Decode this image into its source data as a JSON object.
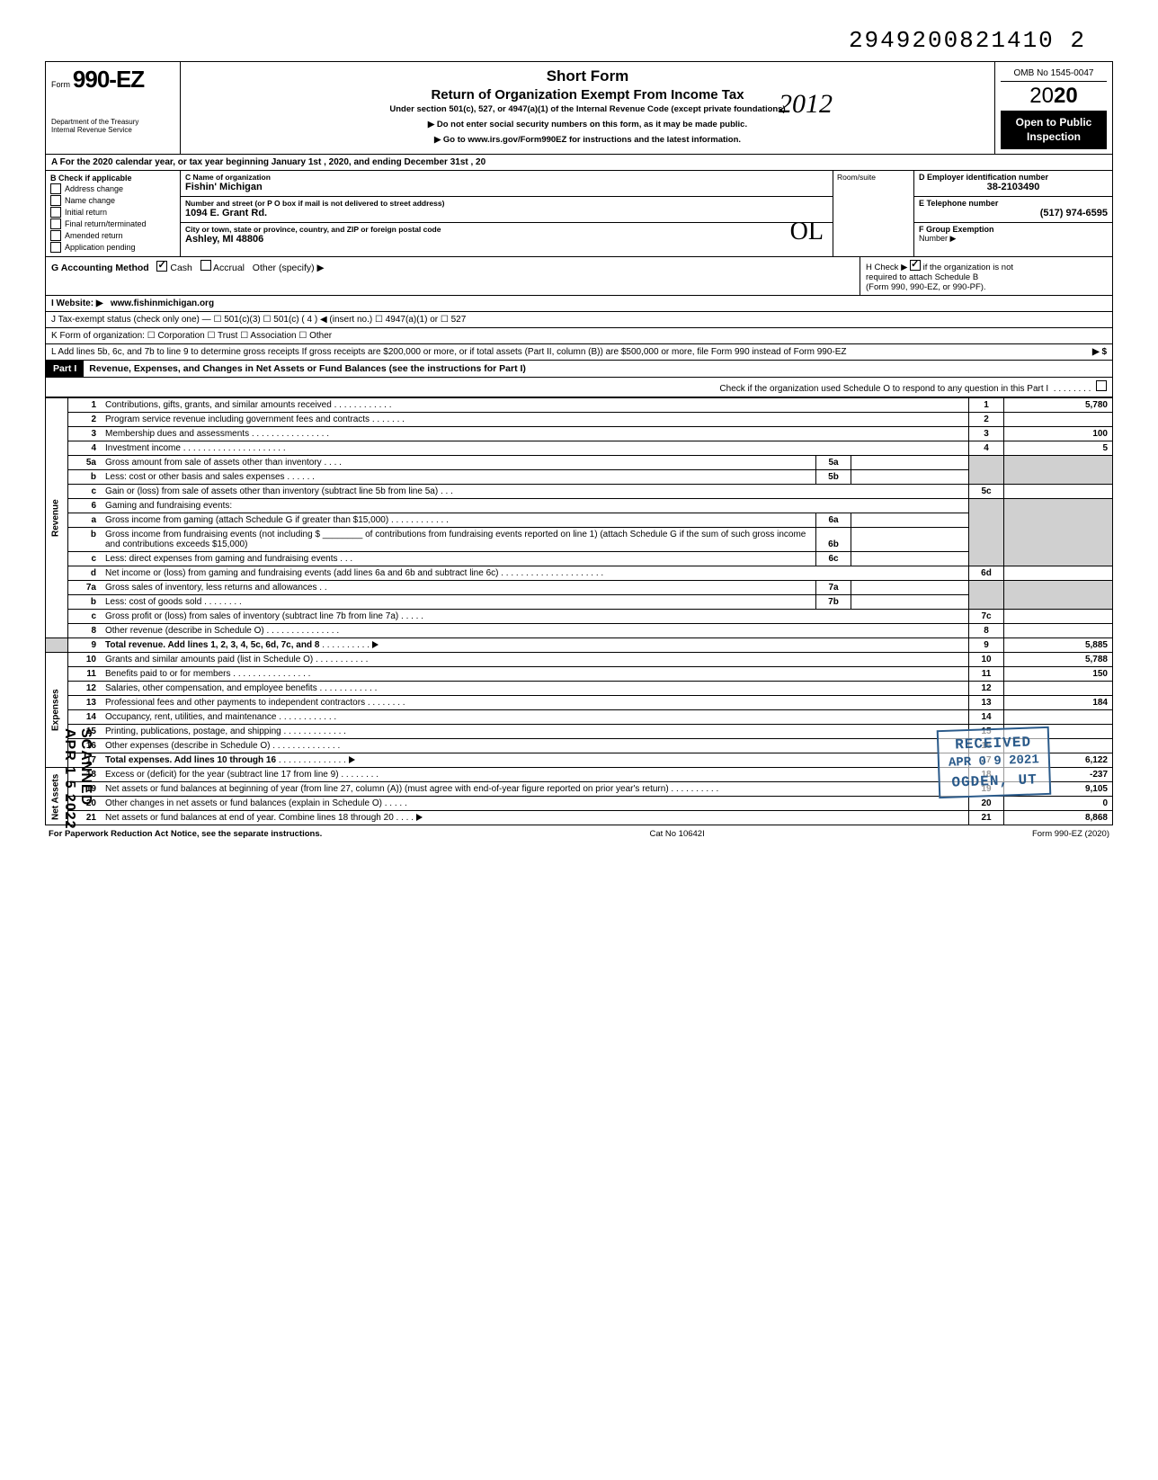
{
  "top_number": "2949200821410  2",
  "form": {
    "word": "Form",
    "number": "990-EZ",
    "dept1": "Department of the Treasury",
    "dept2": "Internal Revenue Service"
  },
  "header": {
    "short_form": "Short Form",
    "title": "Return of Organization Exempt From Income Tax",
    "subtitle": "Under section 501(c), 527, or 4947(a)(1) of the Internal Revenue Code (except private foundations)",
    "line1": "▶ Do not enter social security numbers on this form, as it may be made public.",
    "line2": "▶ Go to www.irs.gov/Form990EZ for instructions and the latest information.",
    "hand_year": "2012",
    "omb": "OMB No 1545-0047",
    "year_prefix": "20",
    "year_bold": "20",
    "open1": "Open to Public",
    "open2": "Inspection"
  },
  "row_a": "A  For the 2020 calendar year, or tax year beginning             January 1st            , 2020, and ending            December 31st          , 20",
  "section_b": {
    "label": "B  Check if applicable",
    "items": [
      "Address change",
      "Name change",
      "Initial return",
      "Final return/terminated",
      "Amended return",
      "Application pending"
    ]
  },
  "section_c": {
    "name_label": "C  Name of organization",
    "name": "Fishin' Michigan",
    "addr_label": "Number and street (or P O  box if mail is not delivered to street address)",
    "addr": "1094 E. Grant Rd.",
    "city_label": "City or town, state or province, country, and ZIP or foreign postal code",
    "city": "Ashley, MI 48806",
    "room_label": "Room/suite",
    "hand_mark": "OL"
  },
  "section_d": {
    "d_label": "D Employer identification number",
    "d_val": "38-2103490",
    "e_label": "E Telephone number",
    "e_val": "(517) 974-6595",
    "f_label": "F Group Exemption",
    "f_label2": "Number ▶"
  },
  "row_g": {
    "label": "G  Accounting Method",
    "cash": "Cash",
    "accrual": "Accrual",
    "other": "Other (specify) ▶"
  },
  "row_h": {
    "text1": "H  Check ▶",
    "text2": "if the organization is not",
    "text3": "required to attach Schedule B",
    "text4": "(Form 990, 990-EZ, or 990-PF)."
  },
  "row_i": {
    "label": "I   Website: ▶",
    "val": "www.fishinmichigan.org"
  },
  "row_j": "J  Tax-exempt status (check only one) —  ☐ 501(c)(3)   ☐ 501(c) (  4  ) ◀ (insert no.)  ☐ 4947(a)(1) or   ☐ 527",
  "row_k": "K  Form of organization:   ☐ Corporation     ☐ Trust              ☐ Association      ☐ Other",
  "row_l": "L  Add lines 5b, 6c, and 7b to line 9 to determine gross receipts  If gross receipts are $200,000 or more, or if total assets (Part II, column (B)) are $500,000 or more, file Form 990 instead of Form 990-EZ",
  "row_l_arrow": "▶   $",
  "part1": {
    "label": "Part I",
    "title": "Revenue, Expenses, and Changes in Net Assets or Fund Balances (see the instructions for Part I)",
    "check": "Check if the organization used Schedule O to respond to any question in this Part I"
  },
  "sides": {
    "revenue": "Revenue",
    "expenses": "Expenses",
    "netassets": "Net Assets"
  },
  "lines": {
    "l1": {
      "num": "1",
      "desc": "Contributions, gifts, grants, and similar amounts received",
      "amt": "5,780"
    },
    "l2": {
      "num": "2",
      "desc": "Program service revenue including government fees and contracts",
      "amt": ""
    },
    "l3": {
      "num": "3",
      "desc": "Membership dues and assessments",
      "amt": "100"
    },
    "l4": {
      "num": "4",
      "desc": "Investment income",
      "amt": "5"
    },
    "l5a": {
      "num": "5a",
      "desc": "Gross amount from sale of assets other than inventory",
      "inum": "5a"
    },
    "l5b": {
      "num": "b",
      "desc": "Less: cost or other basis and sales expenses",
      "inum": "5b"
    },
    "l5c": {
      "num": "c",
      "desc": "Gain or (loss) from sale of assets other than inventory (subtract line 5b from line 5a)",
      "rnum": "5c"
    },
    "l6": {
      "num": "6",
      "desc": "Gaming and fundraising events:"
    },
    "l6a": {
      "num": "a",
      "desc": "Gross income from gaming (attach Schedule G if greater than $15,000)",
      "inum": "6a"
    },
    "l6b": {
      "num": "b",
      "desc1": "Gross income from fundraising events (not including  $",
      "desc2": "of contributions from fundraising events reported on line 1) (attach Schedule G if the sum of such gross income and contributions exceeds $15,000)",
      "inum": "6b"
    },
    "l6c": {
      "num": "c",
      "desc": "Less: direct expenses from gaming and fundraising events",
      "inum": "6c"
    },
    "l6d": {
      "num": "d",
      "desc": "Net income or (loss) from gaming and fundraising events (add lines 6a and 6b and subtract line 6c)",
      "rnum": "6d"
    },
    "l7a": {
      "num": "7a",
      "desc": "Gross sales of inventory, less returns and allowances",
      "inum": "7a"
    },
    "l7b": {
      "num": "b",
      "desc": "Less: cost of goods sold",
      "inum": "7b"
    },
    "l7c": {
      "num": "c",
      "desc": "Gross profit or (loss) from sales of inventory (subtract line 7b from line 7a)",
      "rnum": "7c"
    },
    "l8": {
      "num": "8",
      "desc": "Other revenue (describe in Schedule O)",
      "rnum": "8"
    },
    "l9": {
      "num": "9",
      "desc": "Total revenue. Add lines 1, 2, 3, 4, 5c, 6d, 7c, and 8",
      "rnum": "9",
      "amt": "5,885"
    },
    "l10": {
      "num": "10",
      "desc": "Grants and similar amounts paid (list in Schedule O)",
      "amt": "5,788"
    },
    "l11": {
      "num": "11",
      "desc": "Benefits paid to or for members",
      "amt": "150"
    },
    "l12": {
      "num": "12",
      "desc": "Salaries, other compensation, and employee benefits",
      "amt": ""
    },
    "l13": {
      "num": "13",
      "desc": "Professional fees and other payments to independent contractors",
      "amt": "184"
    },
    "l14": {
      "num": "14",
      "desc": "Occupancy, rent, utilities, and maintenance",
      "amt": ""
    },
    "l15": {
      "num": "15",
      "desc": "Printing, publications, postage, and shipping",
      "amt": ""
    },
    "l16": {
      "num": "16",
      "desc": "Other expenses (describe in Schedule O)",
      "amt": ""
    },
    "l17": {
      "num": "17",
      "desc": "Total expenses. Add lines 10 through 16",
      "amt": "6,122"
    },
    "l18": {
      "num": "18",
      "desc": "Excess or (deficit) for the year (subtract line 17 from line 9)",
      "amt": "-237"
    },
    "l19": {
      "num": "19",
      "desc": "Net assets or fund balances at beginning of year (from line 27, column (A)) (must agree with end-of-year figure reported on prior year's return)",
      "amt": "9,105"
    },
    "l20": {
      "num": "20",
      "desc": "Other changes in net assets or fund balances (explain in Schedule O)",
      "amt": "0"
    },
    "l21": {
      "num": "21",
      "desc": "Net assets or fund balances at end of year. Combine lines 18 through 20",
      "amt": "8,868"
    }
  },
  "footer": {
    "left": "For Paperwork Reduction Act Notice, see the separate instructions.",
    "mid": "Cat No  10642I",
    "right": "Form 990-EZ (2020)"
  },
  "stamp": {
    "received": "RECEIVED",
    "date": "APR 0 9 2021",
    "loc": "OGDEN, UT"
  },
  "scanned": "SCANNED APR 1 5 2022",
  "colors": {
    "stamp": "#2a5a8a",
    "shade": "#d0d0d0"
  }
}
